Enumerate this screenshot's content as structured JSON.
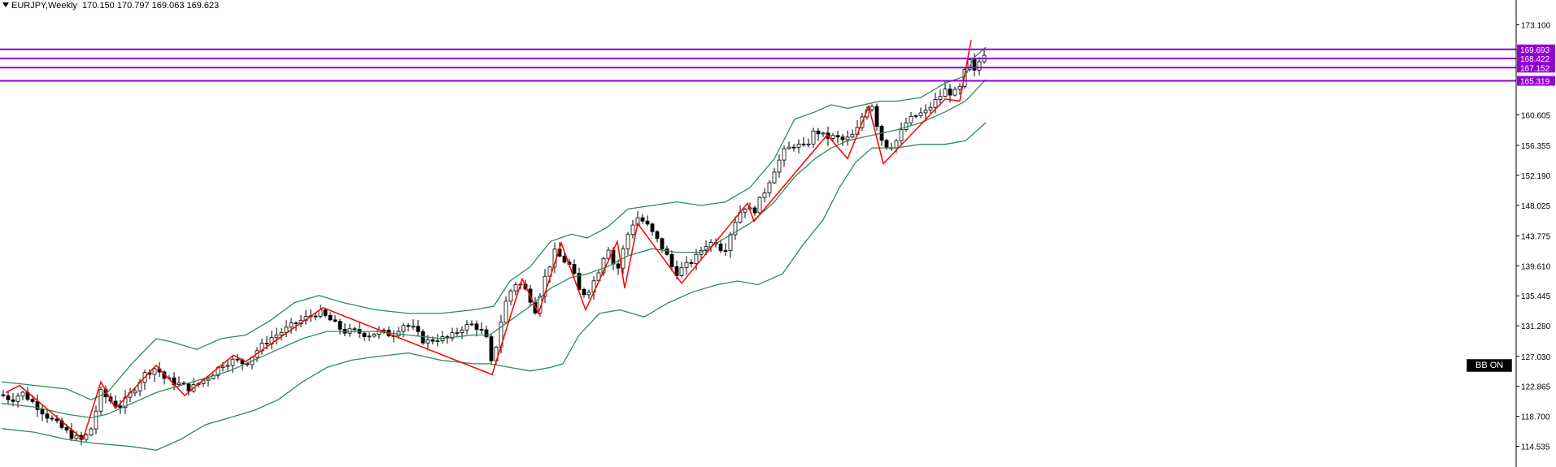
{
  "header": {
    "symbol": "EURJPY,Weekly",
    "ohlc": "170.150 170.797 169.063 169.623"
  },
  "badge": {
    "label": "BB ON"
  },
  "colors": {
    "bull_body": "#ffffff",
    "bear_body": "#000000",
    "wick": "#000000",
    "bands": "#2e8b57",
    "zigzag": "#ff0000",
    "levels": "#9400d3",
    "axis_text": "#000000"
  },
  "chart_data": {
    "type": "candlestick",
    "title": "EURJPY,Weekly",
    "ylim": [
      112.9,
      175.2
    ],
    "y_ticks": [
      "173.100",
      "169.693",
      "168.422",
      "167.152",
      "165.319",
      "160.605",
      "156.355",
      "152.190",
      "148.025",
      "143.775",
      "139.610",
      "135.445",
      "131.280",
      "127.030",
      "122.865",
      "118.700",
      "114.535"
    ],
    "level_lines": [
      169.693,
      168.422,
      167.152,
      165.319
    ],
    "level_labels": [
      "169.693",
      "168.422",
      "167.152",
      "165.319"
    ],
    "indicator": "Bollinger Bands",
    "close_path": [
      [
        0,
        121.7
      ],
      [
        12,
        121.0
      ],
      [
        25,
        122.0
      ],
      [
        40,
        120.5
      ],
      [
        55,
        118.8
      ],
      [
        72,
        117.3
      ],
      [
        86,
        116.0
      ],
      [
        100,
        115.3
      ],
      [
        110,
        117.0
      ],
      [
        122,
        122.0
      ],
      [
        132,
        121.0
      ],
      [
        145,
        120.0
      ],
      [
        160,
        122.0
      ],
      [
        175,
        124.5
      ],
      [
        190,
        125.5
      ],
      [
        200,
        124.0
      ],
      [
        210,
        123.5
      ],
      [
        222,
        123.0
      ],
      [
        232,
        122.5
      ],
      [
        245,
        123.5
      ],
      [
        258,
        124.5
      ],
      [
        272,
        126.0
      ],
      [
        286,
        126.5
      ],
      [
        300,
        126.0
      ],
      [
        315,
        128.0
      ],
      [
        330,
        129.5
      ],
      [
        345,
        130.5
      ],
      [
        360,
        131.5
      ],
      [
        376,
        132.5
      ],
      [
        390,
        133.2
      ],
      [
        405,
        132.0
      ],
      [
        420,
        130.5
      ],
      [
        435,
        130.5
      ],
      [
        450,
        130.0
      ],
      [
        465,
        130.5
      ],
      [
        480,
        130.0
      ],
      [
        493,
        131.5
      ],
      [
        505,
        131.0
      ],
      [
        520,
        129.0
      ],
      [
        535,
        129.5
      ],
      [
        550,
        129.5
      ],
      [
        565,
        131.0
      ],
      [
        580,
        131.5
      ],
      [
        595,
        130.0
      ],
      [
        603,
        125.5
      ],
      [
        612,
        131.0
      ],
      [
        622,
        135.5
      ],
      [
        634,
        137.5
      ],
      [
        646,
        136.0
      ],
      [
        656,
        133.5
      ],
      [
        668,
        138.0
      ],
      [
        680,
        141.5
      ],
      [
        690,
        140.5
      ],
      [
        700,
        139.5
      ],
      [
        712,
        135.5
      ],
      [
        724,
        136.5
      ],
      [
        734,
        139.0
      ],
      [
        745,
        142.5
      ],
      [
        756,
        138.5
      ],
      [
        768,
        143.5
      ],
      [
        780,
        146.5
      ],
      [
        792,
        145.5
      ],
      [
        804,
        143.5
      ],
      [
        816,
        141.5
      ],
      [
        828,
        138.5
      ],
      [
        840,
        139.5
      ],
      [
        852,
        140.5
      ],
      [
        864,
        142.5
      ],
      [
        878,
        143.0
      ],
      [
        888,
        141.5
      ],
      [
        900,
        145.5
      ],
      [
        912,
        148.0
      ],
      [
        924,
        147.0
      ],
      [
        936,
        149.5
      ],
      [
        950,
        153.0
      ],
      [
        962,
        155.5
      ],
      [
        975,
        156.5
      ],
      [
        988,
        156.0
      ],
      [
        1000,
        158.5
      ],
      [
        1012,
        157.5
      ],
      [
        1024,
        157.5
      ],
      [
        1036,
        157.0
      ],
      [
        1050,
        158.0
      ],
      [
        1062,
        161.5
      ],
      [
        1070,
        162.0
      ],
      [
        1080,
        157.5
      ],
      [
        1090,
        156.0
      ],
      [
        1100,
        157.0
      ],
      [
        1112,
        159.5
      ],
      [
        1124,
        160.5
      ],
      [
        1136,
        161.0
      ],
      [
        1148,
        162.5
      ],
      [
        1160,
        164.0
      ],
      [
        1170,
        163.5
      ],
      [
        1180,
        164.5
      ],
      [
        1188,
        168.5
      ],
      [
        1196,
        166.5
      ],
      [
        1204,
        168.5
      ],
      [
        1210,
        169.6
      ]
    ],
    "bb_upper": [
      [
        0,
        123.5
      ],
      [
        40,
        123.0
      ],
      [
        80,
        122.5
      ],
      [
        110,
        121.0
      ],
      [
        130,
        122.0
      ],
      [
        160,
        126.0
      ],
      [
        190,
        129.5
      ],
      [
        210,
        129.0
      ],
      [
        240,
        128.0
      ],
      [
        270,
        129.5
      ],
      [
        300,
        130.0
      ],
      [
        330,
        132.0
      ],
      [
        360,
        134.5
      ],
      [
        390,
        135.5
      ],
      [
        420,
        134.5
      ],
      [
        460,
        133.5
      ],
      [
        500,
        133.0
      ],
      [
        540,
        133.0
      ],
      [
        580,
        133.5
      ],
      [
        605,
        134.0
      ],
      [
        625,
        137.5
      ],
      [
        650,
        139.5
      ],
      [
        675,
        143.0
      ],
      [
        700,
        144.0
      ],
      [
        720,
        143.5
      ],
      [
        745,
        145.0
      ],
      [
        770,
        147.5
      ],
      [
        800,
        148.0
      ],
      [
        830,
        148.5
      ],
      [
        860,
        148.0
      ],
      [
        890,
        148.5
      ],
      [
        920,
        150.5
      ],
      [
        950,
        154.5
      ],
      [
        975,
        160.0
      ],
      [
        1000,
        161.0
      ],
      [
        1020,
        162.0
      ],
      [
        1040,
        161.5
      ],
      [
        1060,
        162.0
      ],
      [
        1080,
        162.5
      ],
      [
        1100,
        162.5
      ],
      [
        1130,
        163.0
      ],
      [
        1160,
        165.0
      ],
      [
        1185,
        166.0
      ],
      [
        1195,
        168.5
      ],
      [
        1210,
        170.0
      ]
    ],
    "bb_middle": [
      [
        0,
        120.5
      ],
      [
        40,
        120.0
      ],
      [
        80,
        119.0
      ],
      [
        110,
        118.5
      ],
      [
        130,
        119.0
      ],
      [
        160,
        120.5
      ],
      [
        190,
        122.0
      ],
      [
        220,
        123.0
      ],
      [
        250,
        124.0
      ],
      [
        280,
        125.0
      ],
      [
        310,
        126.5
      ],
      [
        340,
        128.0
      ],
      [
        370,
        129.5
      ],
      [
        400,
        130.5
      ],
      [
        430,
        130.5
      ],
      [
        460,
        130.5
      ],
      [
        500,
        130.0
      ],
      [
        540,
        129.5
      ],
      [
        580,
        130.0
      ],
      [
        600,
        130.0
      ],
      [
        625,
        132.0
      ],
      [
        650,
        134.0
      ],
      [
        675,
        136.5
      ],
      [
        700,
        138.0
      ],
      [
        720,
        138.5
      ],
      [
        745,
        139.5
      ],
      [
        770,
        141.0
      ],
      [
        800,
        142.0
      ],
      [
        830,
        141.5
      ],
      [
        860,
        141.5
      ],
      [
        890,
        143.5
      ],
      [
        920,
        145.5
      ],
      [
        950,
        148.5
      ],
      [
        975,
        152.0
      ],
      [
        1000,
        154.5
      ],
      [
        1020,
        156.0
      ],
      [
        1040,
        157.0
      ],
      [
        1060,
        157.5
      ],
      [
        1080,
        158.0
      ],
      [
        1100,
        158.5
      ],
      [
        1130,
        159.5
      ],
      [
        1160,
        161.0
      ],
      [
        1185,
        162.5
      ],
      [
        1210,
        165.5
      ]
    ],
    "bb_lower": [
      [
        0,
        117.0
      ],
      [
        40,
        116.5
      ],
      [
        80,
        115.5
      ],
      [
        110,
        115.0
      ],
      [
        130,
        114.8
      ],
      [
        160,
        114.5
      ],
      [
        190,
        114.0
      ],
      [
        220,
        115.5
      ],
      [
        250,
        117.5
      ],
      [
        280,
        118.5
      ],
      [
        310,
        119.5
      ],
      [
        340,
        121.0
      ],
      [
        370,
        123.5
      ],
      [
        400,
        125.5
      ],
      [
        430,
        126.5
      ],
      [
        460,
        127.0
      ],
      [
        500,
        127.5
      ],
      [
        540,
        126.5
      ],
      [
        580,
        126.0
      ],
      [
        600,
        126.0
      ],
      [
        625,
        125.5
      ],
      [
        650,
        125.0
      ],
      [
        675,
        125.5
      ],
      [
        690,
        126.0
      ],
      [
        710,
        130.0
      ],
      [
        735,
        133.0
      ],
      [
        760,
        133.5
      ],
      [
        790,
        132.5
      ],
      [
        820,
        134.5
      ],
      [
        850,
        136.0
      ],
      [
        880,
        137.0
      ],
      [
        905,
        137.5
      ],
      [
        930,
        137.0
      ],
      [
        960,
        138.5
      ],
      [
        985,
        142.5
      ],
      [
        1010,
        146.0
      ],
      [
        1030,
        150.5
      ],
      [
        1050,
        154.0
      ],
      [
        1070,
        156.0
      ],
      [
        1100,
        156.0
      ],
      [
        1130,
        156.5
      ],
      [
        1160,
        156.5
      ],
      [
        1185,
        157.0
      ],
      [
        1210,
        159.5
      ]
    ],
    "zigzag": [
      [
        5,
        122.0
      ],
      [
        22,
        123.0
      ],
      [
        100,
        115.5
      ],
      [
        122,
        123.5
      ],
      [
        140,
        119.8
      ],
      [
        190,
        125.8
      ],
      [
        225,
        121.6
      ],
      [
        285,
        127.2
      ],
      [
        300,
        126.3
      ],
      [
        395,
        133.8
      ],
      [
        603,
        124.5
      ],
      [
        640,
        137.8
      ],
      [
        660,
        133.0
      ],
      [
        688,
        142.8
      ],
      [
        718,
        133.5
      ],
      [
        757,
        143.0
      ],
      [
        766,
        136.5
      ],
      [
        782,
        145.5
      ],
      [
        836,
        137.2
      ],
      [
        917,
        148.3
      ],
      [
        925,
        145.8
      ],
      [
        1015,
        157.8
      ],
      [
        1040,
        154.5
      ],
      [
        1066,
        161.8
      ],
      [
        1084,
        153.8
      ],
      [
        1160,
        162.8
      ],
      [
        1178,
        162.5
      ],
      [
        1192,
        171.0
      ]
    ]
  }
}
